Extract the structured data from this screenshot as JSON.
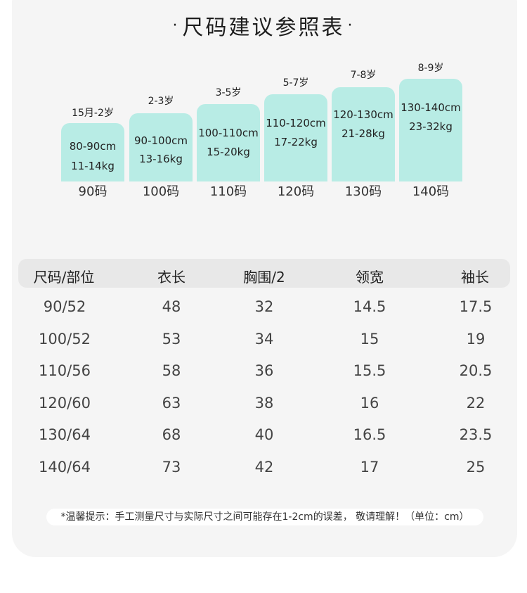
{
  "title": "尺码建议参照表",
  "title_dot": "·",
  "sizes": [
    {
      "age": "15月-2岁",
      "height": "80-90cm",
      "weight": "11-14kg",
      "code": "90码"
    },
    {
      "age": "2-3岁",
      "height": "90-100cm",
      "weight": "13-16kg",
      "code": "100码"
    },
    {
      "age": "3-5岁",
      "height": "100-110cm",
      "weight": "15-20kg",
      "code": "110码"
    },
    {
      "age": "5-7岁",
      "height": "110-120cm",
      "weight": "17-22kg",
      "code": "120码"
    },
    {
      "age": "7-8岁",
      "height": "120-130cm",
      "weight": "21-28kg",
      "code": "130码"
    },
    {
      "age": "8-9岁",
      "height": "130-140cm",
      "weight": "23-32kg",
      "code": "140码"
    }
  ],
  "table": {
    "headers": [
      "尺码/部位",
      "衣长",
      "胸围/2",
      "领宽",
      "袖长"
    ],
    "rows": [
      [
        "90/52",
        "48",
        "32",
        "14.5",
        "17.5"
      ],
      [
        "100/52",
        "53",
        "34",
        "15",
        "19"
      ],
      [
        "110/56",
        "58",
        "36",
        "15.5",
        "20.5"
      ],
      [
        "120/60",
        "63",
        "38",
        "16",
        "22"
      ],
      [
        "130/64",
        "68",
        "40",
        "16.5",
        "23.5"
      ],
      [
        "140/64",
        "73",
        "42",
        "17",
        "25"
      ]
    ]
  },
  "note": "*温馨提示：手工测量尺寸与实际尺寸之间可能存在1-2cm的误差， 敬请理解！（单位：cm）",
  "colors": {
    "bar": "#b8ece5",
    "card": "#f5f5f5",
    "header": "#e8e8e8"
  }
}
